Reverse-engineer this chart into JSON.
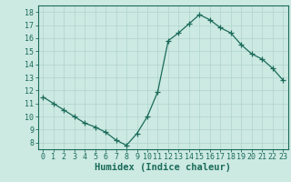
{
  "x": [
    0,
    1,
    2,
    3,
    4,
    5,
    6,
    7,
    8,
    9,
    10,
    11,
    12,
    13,
    14,
    15,
    16,
    17,
    18,
    19,
    20,
    21,
    22,
    23
  ],
  "y": [
    11.5,
    11.0,
    10.5,
    10.0,
    9.5,
    9.2,
    8.8,
    8.2,
    7.8,
    8.7,
    10.0,
    11.9,
    15.8,
    16.4,
    17.1,
    17.8,
    17.4,
    16.8,
    16.4,
    15.5,
    14.8,
    14.4,
    13.7,
    12.8
  ],
  "line_color": "#1a6b5a",
  "marker": "+",
  "marker_size": 4,
  "bg_color": "#cce9e2",
  "grid_color": "#aed4cc",
  "axis_color": "#1a6b5a",
  "text_color": "#1a6b5a",
  "xlabel": "Humidex (Indice chaleur)",
  "xlabel_fontsize": 7.5,
  "ylabel_ticks": [
    8,
    9,
    10,
    11,
    12,
    13,
    14,
    15,
    16,
    17,
    18
  ],
  "xlim": [
    -0.5,
    23.5
  ],
  "ylim": [
    7.5,
    18.5
  ],
  "xticks": [
    0,
    1,
    2,
    3,
    4,
    5,
    6,
    7,
    8,
    9,
    10,
    11,
    12,
    13,
    14,
    15,
    16,
    17,
    18,
    19,
    20,
    21,
    22,
    23
  ],
  "tick_fontsize": 6.0,
  "linewidth": 0.9
}
